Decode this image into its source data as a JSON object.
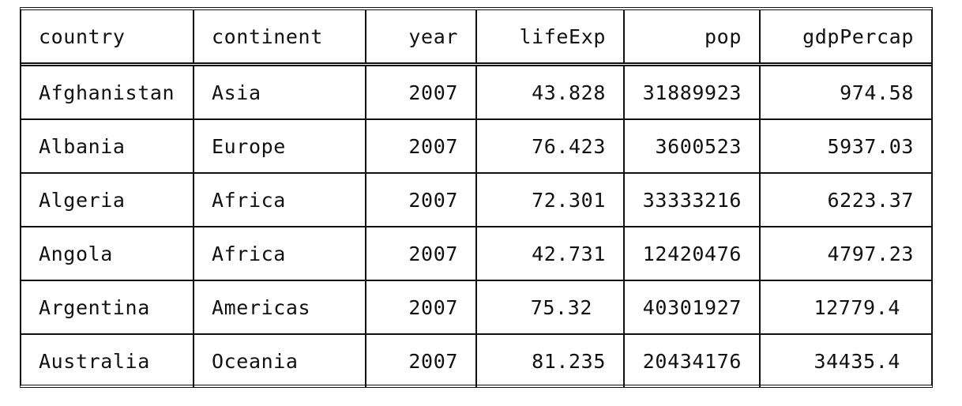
{
  "chart_data": {
    "type": "table",
    "columns": [
      "country",
      "continent",
      "year",
      "lifeExp",
      "pop",
      "gdpPercap"
    ],
    "rows": [
      [
        "Afghanistan",
        "Asia",
        "2007",
        "43.828",
        "31889923",
        "974.58"
      ],
      [
        "Albania",
        "Europe",
        "2007",
        "76.423",
        "3600523",
        "5937.03"
      ],
      [
        "Algeria",
        "Africa",
        "2007",
        "72.301",
        "33333216",
        "6223.37"
      ],
      [
        "Angola",
        "Africa",
        "2007",
        "42.731",
        "12420476",
        "4797.23"
      ],
      [
        "Argentina",
        "Americas",
        "2007",
        "75.32",
        "40301927",
        "12779.4"
      ],
      [
        "Australia",
        "Oceania",
        "2007",
        "81.235",
        "20434176",
        "34435.4"
      ]
    ]
  }
}
